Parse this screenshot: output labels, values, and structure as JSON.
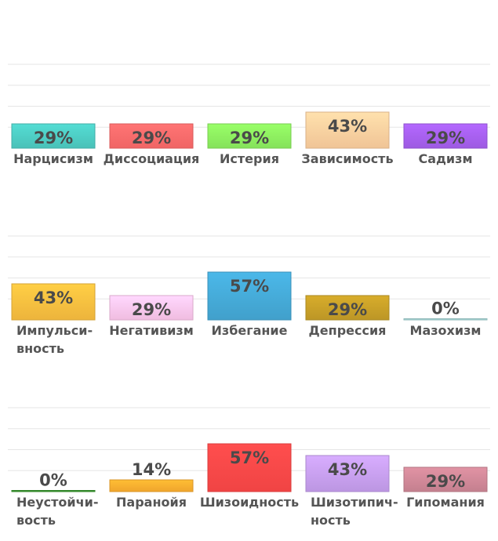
{
  "chart_data": [
    {
      "type": "bar",
      "categories": [
        "Нарцисизм",
        "Диссоциация",
        "Истерия",
        "Зависимость",
        "Садизм"
      ],
      "values": [
        29,
        29,
        29,
        43,
        29
      ],
      "value_labels": [
        "29%",
        "29%",
        "29%",
        "43%",
        "29%"
      ],
      "colors": [
        "#4ecdc4",
        "#ff6b6b",
        "#8ef060",
        "#ffd0a0",
        "#a760f0"
      ],
      "ylim": [
        0,
        100
      ],
      "grid": true,
      "unit": "%"
    },
    {
      "type": "bar",
      "categories": [
        "Импульси-вность",
        "Негативизм",
        "Избегание",
        "Депрессия",
        "Мазохизм"
      ],
      "values": [
        43,
        29,
        57,
        29,
        0
      ],
      "value_labels": [
        "43%",
        "29%",
        "57%",
        "29%",
        "0%"
      ],
      "colors": [
        "#fcc040",
        "#ffc8ee",
        "#45aad8",
        "#c8a028",
        "#a8d8d8"
      ],
      "ylim": [
        0,
        100
      ],
      "grid": true,
      "unit": "%"
    },
    {
      "type": "bar",
      "categories": [
        "Неустойчи-вость",
        "Паранойя",
        "Шизоидность",
        "Шизотипич-ность",
        "Гипомания"
      ],
      "values": [
        0,
        14,
        57,
        43,
        29
      ],
      "value_labels": [
        "0%",
        "14%",
        "57%",
        "43%",
        "29%"
      ],
      "colors": [
        "#3a9a30",
        "#ffb030",
        "#ff4848",
        "#c8a0f0",
        "#d08898"
      ],
      "ylim": [
        0,
        100
      ],
      "grid": true,
      "unit": "%"
    }
  ]
}
